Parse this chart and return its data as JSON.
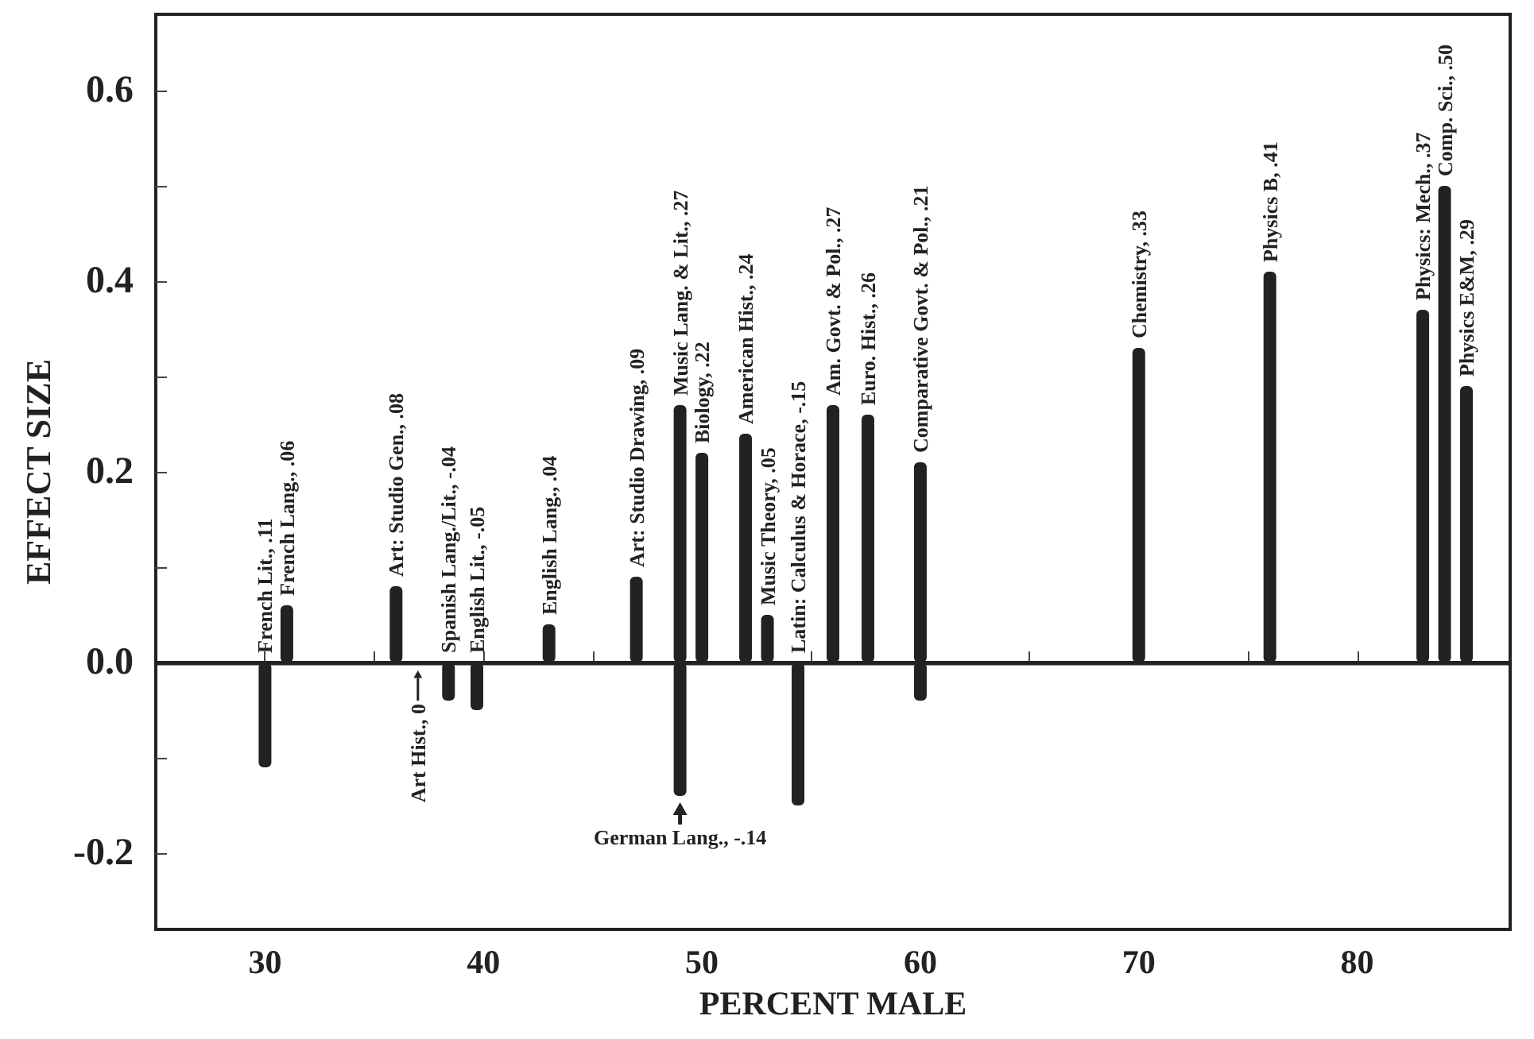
{
  "chart_data": {
    "type": "bar",
    "xlabel": "PERCENT MALE",
    "ylabel": "EFFECT SIZE",
    "x": [
      30,
      31,
      36,
      37,
      38.4,
      39.7,
      43,
      47,
      49,
      50,
      52,
      53,
      54.4,
      56,
      57.6,
      60,
      70,
      76,
      83,
      84,
      85
    ],
    "series": [
      {
        "color": "#222222",
        "values": [
          -0.11,
          0.06,
          0.08,
          0,
          -0.04,
          -0.05,
          0.04,
          0.09,
          0.27,
          0.22,
          0.24,
          0.05,
          -0.15,
          0.27,
          0.26,
          0.21,
          0.33,
          0.41,
          0.37,
          0.5,
          0.29
        ],
        "value_labels": [
          null,
          "French Lang., .06",
          "Art: Studio Gen., .08",
          "Art Hist., 0",
          "Spanish Lang./Lit., -.04",
          "English Lit., -.05",
          "English Lang., .04",
          "Art: Studio Drawing, .09",
          "Music Lang. & Lit., .27",
          "Biology, .22",
          "American Hist., .24",
          "Music Theory, .05",
          "Latin: Calculus & Horace, -.15",
          "Am. Govt. & Pol., .27",
          "Euro. Hist., .26",
          "Comparative Govt. & Pol., .21",
          "Chemistry, .33",
          "Physics B, .41",
          "Physics: Mech., .37",
          "Comp. Sci., .50",
          "Physics E&M, .29"
        ]
      },
      {
        "color": "#222222",
        "x": [
          49,
          60
        ],
        "values": [
          -0.14,
          -0.04
        ],
        "value_labels": [
          "German Lang., -.14",
          null
        ]
      }
    ],
    "xlim": [
      25,
      87
    ],
    "ylim": [
      -0.28,
      0.68
    ],
    "xticks": [
      30,
      {
        "value": 35,
        "label": null
      },
      40,
      {
        "value": 45,
        "label": null
      },
      50,
      {
        "value": 55,
        "label": null
      },
      60,
      {
        "value": 65,
        "label": null
      },
      70,
      {
        "value": 75,
        "label": null
      },
      80,
      {
        "value": 85,
        "label": null
      }
    ],
    "yticks": [
      {
        "value": -0.2,
        "label": "-0.2"
      },
      {
        "value": -0.1,
        "label": null
      },
      {
        "value": 0,
        "label": "0.0"
      },
      {
        "value": 0.1,
        "label": null
      },
      {
        "value": 0.2,
        "label": "0.2"
      },
      {
        "value": 0.3,
        "label": null
      },
      {
        "value": 0.4,
        "label": "0.4"
      },
      {
        "value": 0.5,
        "label": null
      },
      {
        "value": 0.6,
        "label": "0.6"
      }
    ],
    "ref_lines": [
      {
        "axis": "y",
        "value": 0
      }
    ],
    "annotations": [
      {
        "text": "French Lit., .11",
        "x": 30,
        "y": 0
      }
    ]
  }
}
